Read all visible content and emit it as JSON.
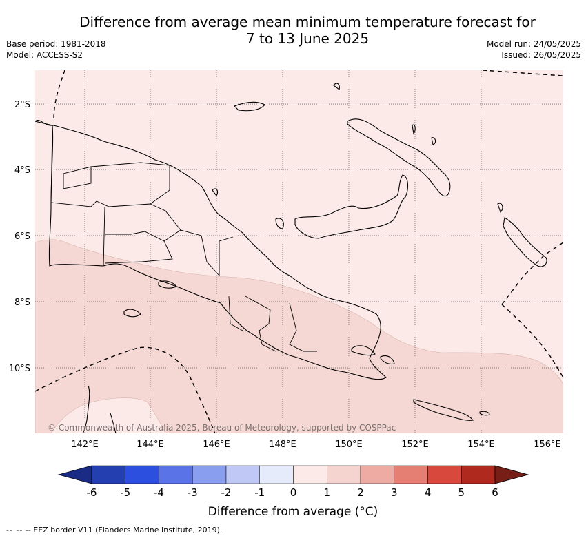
{
  "title_line1": "Difference from average mean minimum temperature forecast for",
  "title_line2": "7 to 13 June 2025",
  "base_period": "Base period: 1981-2018",
  "model": "Model: ACCESS-S2",
  "model_run": "Model run: 24/05/2025",
  "issued": "Issued: 26/05/2025",
  "lat_labels": [
    "2°S",
    "4°S",
    "6°S",
    "8°S",
    "10°S"
  ],
  "lon_labels": [
    "142°E",
    "144°E",
    "146°E",
    "148°E",
    "150°E",
    "152°E",
    "154°E",
    "156°E"
  ],
  "copyright": "© Commonwealth of Australia 2025, Bureau of Meteorology, supported by COSPPac",
  "colorbar": {
    "ticks": [
      "-6",
      "-5",
      "-4",
      "-3",
      "-2",
      "-1",
      "0",
      "1",
      "2",
      "3",
      "4",
      "5",
      "6"
    ],
    "colors": [
      "#2440b0",
      "#2d4fe0",
      "#5a74e8",
      "#8a9eef",
      "#c0c9f5",
      "#e6ebfb",
      "#fbeae8",
      "#f5d3cf",
      "#eeaba3",
      "#e57f74",
      "#d9483c",
      "#b0291f"
    ],
    "under_color": "#1a2b85",
    "over_color": "#771e16",
    "label": "Difference from average (°C)"
  },
  "map_colors": {
    "band_0_1": "#fbeae8",
    "band_1_2": "#f5d8d4",
    "land_outline": "#000000"
  },
  "eez_note": "-- EEZ border V11 (Flanders Marine Institute, 2019).",
  "eez_dashes": "--  --"
}
